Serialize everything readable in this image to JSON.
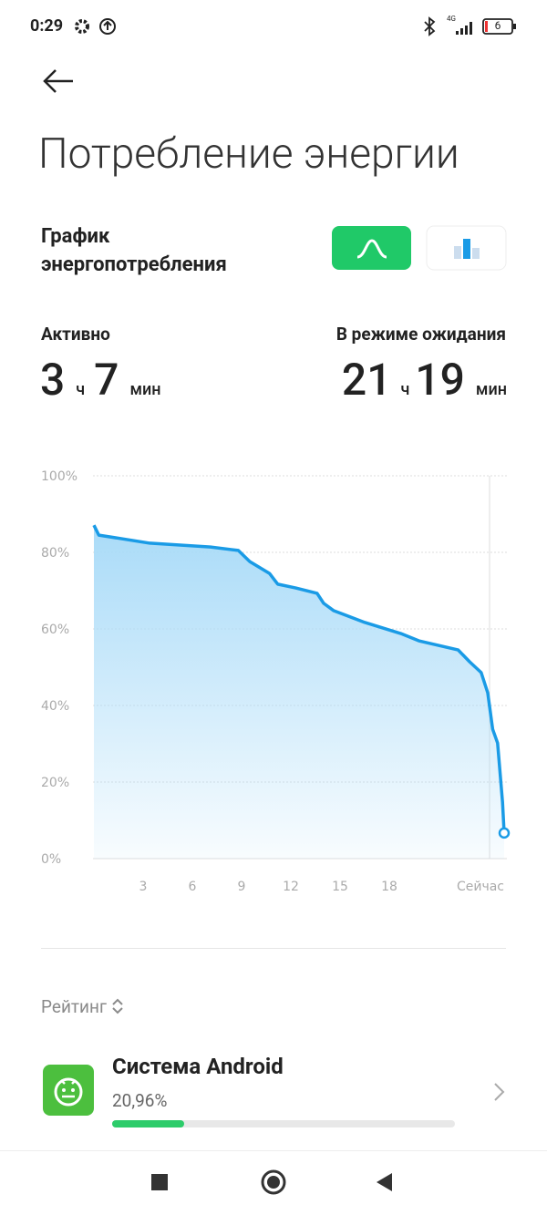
{
  "status_bar": {
    "time": "0:29",
    "network": "4G",
    "battery": "6"
  },
  "header": {
    "title": "Потребление энергии"
  },
  "section": {
    "title": "График энергопотребления"
  },
  "stats": {
    "active": {
      "label": "Активно",
      "hours": 3,
      "hours_unit": "ч",
      "minutes": 7,
      "minutes_unit": "мин"
    },
    "standby": {
      "label": "В режиме ожидания",
      "hours": 21,
      "hours_unit": "ч",
      "minutes": 19,
      "minutes_unit": "мин"
    }
  },
  "chart_data": {
    "type": "line",
    "color": "#1a9be6",
    "x": [
      0,
      0.3,
      3.4,
      7.1,
      8.8,
      9.5,
      10.7,
      11.2,
      12.3,
      13.6,
      14,
      14.6,
      16.5,
      18.7,
      19.8,
      22.2,
      22.9,
      23.6,
      24,
      24.3,
      24.6,
      24.9,
      25
    ],
    "values": [
      87.1,
      84.5,
      82.4,
      81.4,
      80.5,
      77.6,
      74.5,
      71.7,
      70.7,
      69.3,
      66.7,
      64.8,
      61.7,
      58.8,
      56.9,
      54.5,
      51.4,
      48.6,
      43.3,
      33.8,
      30.2,
      14.8,
      6.7
    ],
    "xlim": [
      0,
      25
    ],
    "xticks": [
      3,
      6,
      9,
      12,
      15,
      18,
      {
        "value": 24,
        "label": "Сейчас"
      }
    ],
    "ylim": [
      0,
      100
    ],
    "yticks": [
      {
        "value": 0,
        "label": "0%"
      },
      {
        "value": 20,
        "label": "20%"
      },
      {
        "value": 40,
        "label": "40%"
      },
      {
        "value": 60,
        "label": "60%"
      },
      {
        "value": 80,
        "label": "80%"
      },
      {
        "value": 100,
        "label": "100%"
      }
    ],
    "grid": true
  },
  "ranking": {
    "title": "Рейтинг",
    "apps": [
      {
        "name": "Система Android",
        "value": 20.96,
        "value_label": "20,96%"
      }
    ]
  }
}
